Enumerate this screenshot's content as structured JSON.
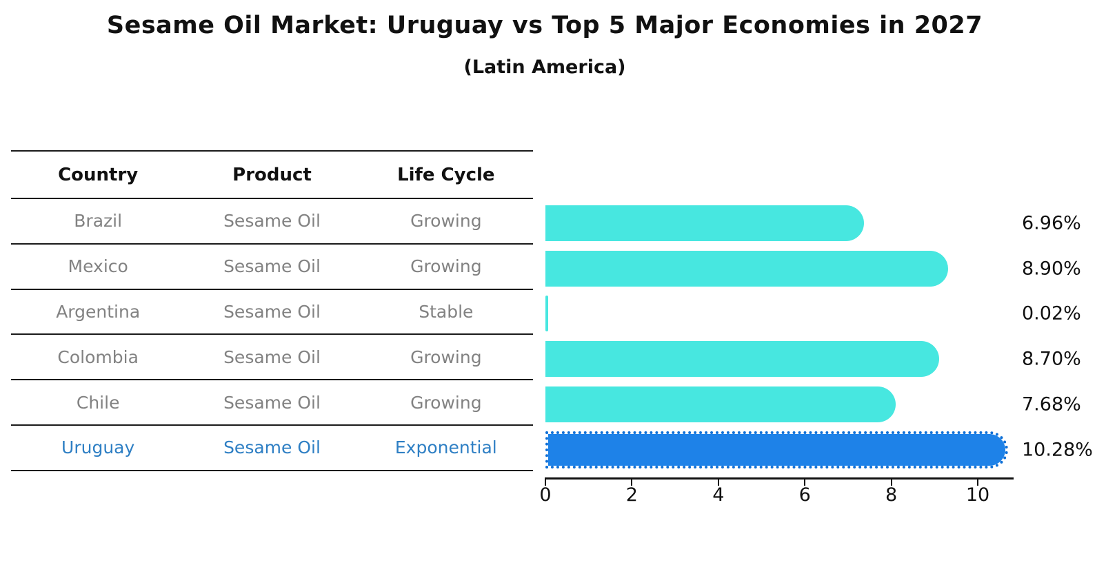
{
  "title": "Sesame Oil Market: Uruguay vs Top 5 Major Economies in 2027",
  "subtitle": "(Latin America)",
  "table": {
    "headers": [
      "Country",
      "Product",
      "Life Cycle"
    ],
    "rows": [
      {
        "country": "Brazil",
        "product": "Sesame Oil",
        "life_cycle": "Growing",
        "highlight": false
      },
      {
        "country": "Mexico",
        "product": "Sesame Oil",
        "life_cycle": "Growing",
        "highlight": false
      },
      {
        "country": "Argentina",
        "product": "Sesame Oil",
        "life_cycle": "Stable",
        "highlight": false
      },
      {
        "country": "Colombia",
        "product": "Sesame Oil",
        "life_cycle": "Growing",
        "highlight": false
      },
      {
        "country": "Chile",
        "product": "Sesame Oil",
        "life_cycle": "Growing",
        "highlight": false
      },
      {
        "country": "Uruguay",
        "product": "Sesame Oil",
        "life_cycle": "Exponential",
        "highlight": true
      }
    ]
  },
  "chart_data": {
    "type": "bar",
    "orientation": "horizontal",
    "title": "Sesame Oil Market: Uruguay vs Top 5 Major Economies in 2027 (Latin America)",
    "categories": [
      "Brazil",
      "Mexico",
      "Argentina",
      "Colombia",
      "Chile",
      "Uruguay"
    ],
    "values": [
      6.96,
      8.9,
      0.02,
      8.7,
      7.68,
      10.28
    ],
    "value_labels": [
      "6.96%",
      "8.90%",
      "0.02%",
      "8.70%",
      "7.68%",
      "10.28%"
    ],
    "unit": "percent",
    "x_ticks": [
      0,
      2,
      4,
      6,
      8,
      10
    ],
    "xlim": [
      0,
      10.8
    ],
    "grid": false,
    "legend": false,
    "bar_color": "#47e7e0",
    "highlight_color": "#1e82e8",
    "highlight_index": 5
  },
  "colors": {
    "heading_text": "#111111",
    "row_text": "#828282",
    "highlight_text": "#2e7fc4",
    "axis": "#111111"
  }
}
